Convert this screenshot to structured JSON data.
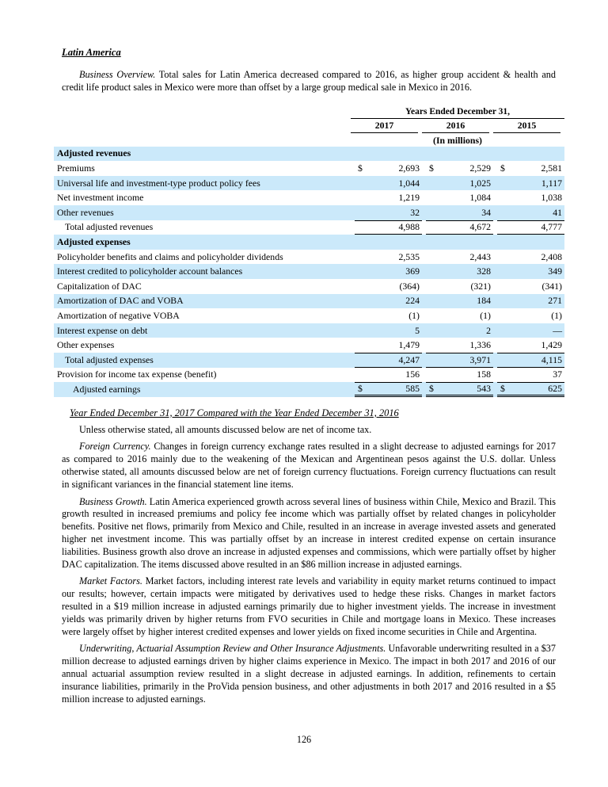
{
  "heading": "Latin America",
  "page_number": "126",
  "comparison_heading": "Year Ended December 31, 2017 Compared with the Year Ended December 31, 2016",
  "paragraphs": {
    "business_overview": {
      "lead": "Business Overview.",
      "rest": " Total sales for Latin America decreased compared to 2016, as higher group accident & health and credit life product sales in Mexico were more than offset by a large group medical sale in Mexico in 2016."
    },
    "net_of_tax": "Unless otherwise stated, all amounts discussed below are net of income tax.",
    "foreign_currency": {
      "lead": "Foreign Currency.",
      "rest": " Changes in foreign currency exchange rates resulted in a slight decrease to adjusted earnings for 2017 as compared to 2016 mainly due to the weakening of the Mexican and Argentinean pesos against the U.S. dollar. Unless otherwise stated, all amounts discussed below are net of foreign currency fluctuations. Foreign currency fluctuations can result in significant variances in the financial statement line items."
    },
    "business_growth": {
      "lead": "Business Growth.",
      "rest": " Latin America experienced growth across several lines of business within Chile, Mexico and Brazil. This growth resulted in increased premiums and policy fee income which was partially offset by related changes in policyholder benefits. Positive net flows, primarily from Mexico and Chile, resulted in an increase in average invested assets and generated higher net investment income. This was partially offset by an increase in interest credited expense on certain insurance liabilities. Business growth also drove an increase in adjusted expenses and commissions, which were partially offset by higher DAC capitalization. The items discussed above resulted in an $86 million increase in adjusted earnings."
    },
    "market_factors": {
      "lead": "Market Factors.",
      "rest": " Market factors, including interest rate levels and variability in equity market returns continued to impact our results; however, certain impacts were mitigated by derivatives used to hedge these risks. Changes in market factors resulted in a $19 million increase in adjusted earnings primarily due to higher investment yields. The increase in investment yields was primarily driven by higher returns from FVO securities in Chile and mortgage loans in Mexico. These increases were largely offset by higher interest credited expenses and lower yields on fixed income securities in Chile and Argentina."
    },
    "underwriting": {
      "lead": "Underwriting, Actuarial Assumption Review and Other Insurance Adjustments.",
      "rest": " Unfavorable underwriting resulted in a $37 million decrease to adjusted earnings driven by higher claims experience in Mexico. The impact in both 2017 and 2016 of our annual actuarial assumption review resulted in a slight decrease in adjusted earnings. In addition, refinements to certain insurance liabilities, primarily in the ProVida pension business, and other adjustments in both 2017 and 2016 resulted in a $5 million increase to adjusted earnings."
    }
  },
  "table": {
    "spanner": "Years Ended December 31,",
    "unit_note": "(In millions)",
    "years": [
      "2017",
      "2016",
      "2015"
    ],
    "stripe_color": "#cbe9fa",
    "rows": [
      {
        "label": "Adjusted revenues",
        "bold": true,
        "shaded": true,
        "indent": 0,
        "dollar": false,
        "values": null,
        "line_top": false,
        "line_bottom": null
      },
      {
        "label": "Premiums",
        "bold": false,
        "shaded": false,
        "indent": 0,
        "dollar": true,
        "values": [
          "2,693",
          "2,529",
          "2,581"
        ],
        "line_top": false,
        "line_bottom": null
      },
      {
        "label": "Universal life and investment-type product policy fees",
        "bold": false,
        "shaded": true,
        "indent": 0,
        "dollar": false,
        "values": [
          "1,044",
          "1,025",
          "1,117"
        ],
        "line_top": false,
        "line_bottom": null
      },
      {
        "label": "Net investment income",
        "bold": false,
        "shaded": false,
        "indent": 0,
        "dollar": false,
        "values": [
          "1,219",
          "1,084",
          "1,038"
        ],
        "line_top": false,
        "line_bottom": null
      },
      {
        "label": "Other revenues",
        "bold": false,
        "shaded": true,
        "indent": 0,
        "dollar": false,
        "values": [
          "32",
          "34",
          "41"
        ],
        "line_top": false,
        "line_bottom": null
      },
      {
        "label": "Total adjusted revenues",
        "bold": false,
        "shaded": false,
        "indent": 1,
        "dollar": false,
        "values": [
          "4,988",
          "4,672",
          "4,777"
        ],
        "line_top": true,
        "line_bottom": "single"
      },
      {
        "label": "Adjusted expenses",
        "bold": true,
        "shaded": true,
        "indent": 0,
        "dollar": false,
        "values": null,
        "line_top": false,
        "line_bottom": null
      },
      {
        "label": "Policyholder benefits and claims and policyholder dividends",
        "bold": false,
        "shaded": false,
        "indent": 0,
        "dollar": false,
        "values": [
          "2,535",
          "2,443",
          "2,408"
        ],
        "line_top": false,
        "line_bottom": null
      },
      {
        "label": "Interest credited to policyholder account balances",
        "bold": false,
        "shaded": true,
        "indent": 0,
        "dollar": false,
        "values": [
          "369",
          "328",
          "349"
        ],
        "line_top": false,
        "line_bottom": null
      },
      {
        "label": "Capitalization of DAC",
        "bold": false,
        "shaded": false,
        "indent": 0,
        "dollar": false,
        "values": [
          "(364)",
          "(321)",
          "(341)"
        ],
        "line_top": false,
        "line_bottom": null
      },
      {
        "label": "Amortization of DAC and VOBA",
        "bold": false,
        "shaded": true,
        "indent": 0,
        "dollar": false,
        "values": [
          "224",
          "184",
          "271"
        ],
        "line_top": false,
        "line_bottom": null
      },
      {
        "label": "Amortization of negative VOBA",
        "bold": false,
        "shaded": false,
        "indent": 0,
        "dollar": false,
        "values": [
          "(1)",
          "(1)",
          "(1)"
        ],
        "line_top": false,
        "line_bottom": null
      },
      {
        "label": "Interest expense on debt",
        "bold": false,
        "shaded": true,
        "indent": 0,
        "dollar": false,
        "values": [
          "5",
          "2",
          "—"
        ],
        "line_top": false,
        "line_bottom": null
      },
      {
        "label": "Other expenses",
        "bold": false,
        "shaded": false,
        "indent": 0,
        "dollar": false,
        "values": [
          "1,479",
          "1,336",
          "1,429"
        ],
        "line_top": false,
        "line_bottom": null
      },
      {
        "label": "Total adjusted expenses",
        "bold": false,
        "shaded": true,
        "indent": 1,
        "dollar": false,
        "values": [
          "4,247",
          "3,971",
          "4,115"
        ],
        "line_top": true,
        "line_bottom": "single"
      },
      {
        "label": "Provision for income tax expense (benefit)",
        "bold": false,
        "shaded": false,
        "indent": 0,
        "dollar": false,
        "values": [
          "156",
          "158",
          "37"
        ],
        "line_top": false,
        "line_bottom": null
      },
      {
        "label": "Adjusted earnings",
        "bold": false,
        "shaded": true,
        "indent": 2,
        "dollar": true,
        "values": [
          "585",
          "543",
          "625"
        ],
        "line_top": true,
        "line_bottom": "double"
      }
    ]
  }
}
